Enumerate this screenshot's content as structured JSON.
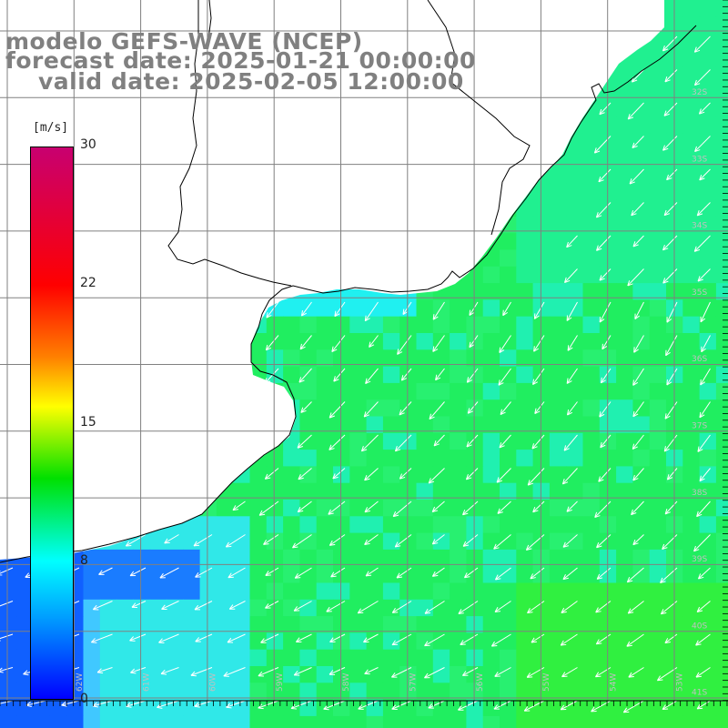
{
  "title": {
    "line1": "modelo GEFS-WAVE (NCEP)",
    "line2": "forecast date: 2025-01-21 00:00:00",
    "line3": "valid date: 2025-02-05 12:00:00"
  },
  "colorbar": {
    "unit": "[m/s]",
    "ticks": [
      {
        "label": "30",
        "value": 30
      },
      {
        "label": "22",
        "value": 22
      },
      {
        "label": "15",
        "value": 15
      },
      {
        "label": "8",
        "value": 8
      },
      {
        "label": "0",
        "value": 0
      }
    ],
    "colors": [
      "#0000ff",
      "#00a0ff",
      "#00ffff",
      "#00e000",
      "#ffff00",
      "#ff8000",
      "#ff0000",
      "#c80070"
    ]
  },
  "map": {
    "lat_labels": [
      "32S",
      "33S",
      "34S",
      "35S",
      "36S",
      "37S",
      "38S",
      "39S",
      "40S",
      "41S"
    ],
    "lon_labels": [
      "62W",
      "61W",
      "60W",
      "59W",
      "58W",
      "57W",
      "56W",
      "55W",
      "54W",
      "53W"
    ],
    "land_color": "#ffffff",
    "grid_color": "#808080",
    "arrow_color": "#ffffff"
  }
}
